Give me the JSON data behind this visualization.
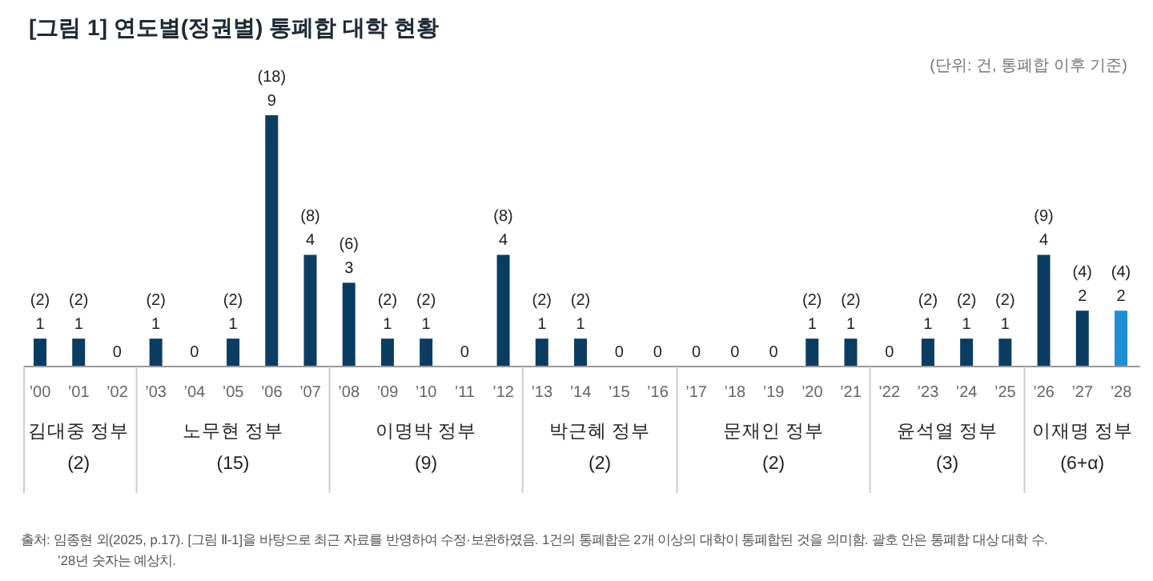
{
  "chart_data": {
    "type": "bar",
    "title": "[그림 1]  연도별(정권별) 통폐합 대학 현황",
    "subtitle": "(단위: 건, 통폐합 이후 기준)",
    "categories": [
      "’00",
      "’01",
      "’02",
      "’03",
      "’04",
      "’05",
      "’06",
      "’07",
      "’08",
      "’09",
      "’10",
      "’11",
      "’12",
      "’13",
      "’14",
      "’15",
      "’16",
      "’17",
      "’18",
      "’19",
      "’20",
      "’21",
      "’22",
      "’23",
      "’24",
      "’25",
      "’26",
      "’27",
      "’28"
    ],
    "values": [
      1,
      1,
      0,
      1,
      0,
      1,
      9,
      4,
      3,
      1,
      1,
      0,
      4,
      1,
      1,
      0,
      0,
      0,
      0,
      0,
      1,
      1,
      0,
      1,
      1,
      1,
      4,
      2,
      2
    ],
    "colors": [
      "#0b3d63",
      "#0b3d63",
      "#0b3d63",
      "#0b3d63",
      "#0b3d63",
      "#0b3d63",
      "#0b3d63",
      "#0b3d63",
      "#0b3d63",
      "#0b3d63",
      "#0b3d63",
      "#0b3d63",
      "#0b3d63",
      "#0b3d63",
      "#0b3d63",
      "#0b3d63",
      "#0b3d63",
      "#0b3d63",
      "#0b3d63",
      "#0b3d63",
      "#0b3d63",
      "#0b3d63",
      "#0b3d63",
      "#0b3d63",
      "#0b3d63",
      "#0b3d63",
      "#0b3d63",
      "#0b3d63",
      "#1e8fd5"
    ],
    "data_labels": true,
    "annotations": [
      {
        "text": "(2)",
        "x": "’00",
        "y": 1
      },
      {
        "text": "(2)",
        "x": "’01",
        "y": 1
      },
      {
        "text": "(2)",
        "x": "’03",
        "y": 1
      },
      {
        "text": "(2)",
        "x": "’05",
        "y": 1
      },
      {
        "text": "(18)",
        "x": "’06",
        "y": 9
      },
      {
        "text": "(8)",
        "x": "’07",
        "y": 4
      },
      {
        "text": "(6)",
        "x": "’08",
        "y": 3
      },
      {
        "text": "(2)",
        "x": "’09",
        "y": 1
      },
      {
        "text": "(2)",
        "x": "’10",
        "y": 1
      },
      {
        "text": "(8)",
        "x": "’12",
        "y": 4
      },
      {
        "text": "(2)",
        "x": "’13",
        "y": 1
      },
      {
        "text": "(2)",
        "x": "’14",
        "y": 1
      },
      {
        "text": "(2)",
        "x": "’20",
        "y": 1
      },
      {
        "text": "(2)",
        "x": "’21",
        "y": 1
      },
      {
        "text": "(2)",
        "x": "’23",
        "y": 1
      },
      {
        "text": "(2)",
        "x": "’24",
        "y": 1
      },
      {
        "text": "(2)",
        "x": "’25",
        "y": 1
      },
      {
        "text": "(9)",
        "x": "’26",
        "y": 4
      },
      {
        "text": "(4)",
        "x": "’27",
        "y": 2
      },
      {
        "text": "(4)",
        "x": "’28",
        "y": 2
      },
      "김대중 정부\n(2)",
      "노무현 정부\n(15)",
      "이명박 정부\n(9)",
      "박근혜 정부\n(2)",
      "문재인 정부\n(2)",
      "윤석열 정부\n(3)",
      "이재명 정부\n(6+α)",
      "출처: 임종현 외(2025, p.17). [그림 Ⅱ-1]을 바탕으로 최근 자료를 반영하여 수정·보완하였음. 1건의 통폐합은 2개 이상의 대학이 통폐합된 것을 의미함. 괄호 안은 통폐합 대상 대학 수.",
      "’28년 숫자는 예상치."
    ]
  }
}
